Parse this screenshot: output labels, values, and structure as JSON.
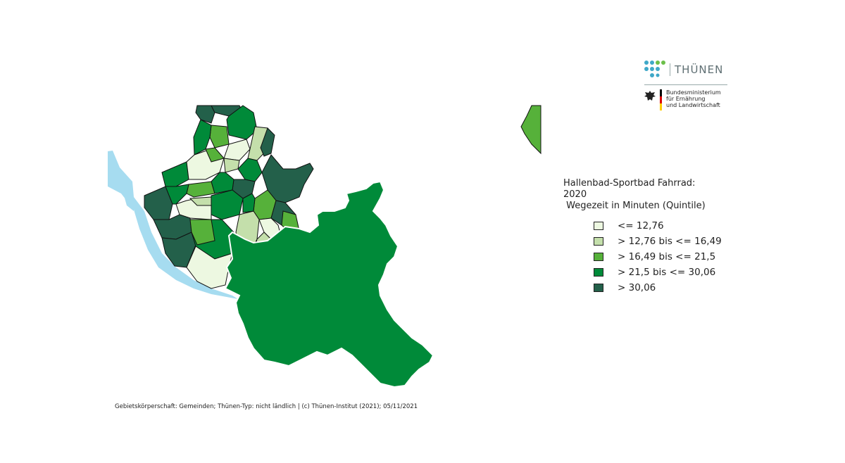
{
  "legend": {
    "title": "Hallenbad-Sportbad Fahrrad:\n2020\n Wegezeit in Minuten (Quintile)",
    "items": [
      {
        "label": "<= 12,76",
        "color": "#edf8e1"
      },
      {
        "label": ">  12,76 bis <= 16,49",
        "color": "#c4dfab"
      },
      {
        "label": ">  16,49 bis <= 21,5",
        "color": "#56b13a"
      },
      {
        "label": ">  21,5 bis <= 30,06",
        "color": "#008a39"
      },
      {
        "label": ">  30,06",
        "color": "#23604a"
      }
    ]
  },
  "logo": {
    "name": "THÜNEN",
    "ministry": [
      "Bundesministerium",
      "für Ernährung",
      "und Landwirtschaft"
    ]
  },
  "footer": "Gebietskörperschaft: Gemeinden; Thünen-Typ: nicht ländlich | (c) Thünen-Institut (2021); 05/11/2021",
  "map": {
    "water_color": "#a6dcf0",
    "regions": [
      {
        "id": "hamburg-main",
        "class": 3
      },
      {
        "id": "north-tip-1",
        "class": 4
      },
      {
        "id": "north-tip-2",
        "class": 4
      },
      {
        "id": "north-1",
        "class": 3
      },
      {
        "id": "north-2",
        "class": 2
      },
      {
        "id": "north-3",
        "class": 0
      },
      {
        "id": "north-4",
        "class": 1
      },
      {
        "id": "north-5",
        "class": 4
      },
      {
        "id": "north-6",
        "class": 3
      },
      {
        "id": "west-1",
        "class": 3
      },
      {
        "id": "center-1",
        "class": 0
      },
      {
        "id": "center-2",
        "class": 2
      },
      {
        "id": "center-3",
        "class": 1
      },
      {
        "id": "center-4",
        "class": 3
      },
      {
        "id": "center-5",
        "class": 4
      },
      {
        "id": "east-big",
        "class": 4
      },
      {
        "id": "center-6",
        "class": 2
      },
      {
        "id": "center-7",
        "class": 3
      },
      {
        "id": "west-2",
        "class": 4
      },
      {
        "id": "west-3",
        "class": 3
      },
      {
        "id": "center-8",
        "class": 0
      },
      {
        "id": "center-9",
        "class": 1
      },
      {
        "id": "center-10",
        "class": 3
      },
      {
        "id": "east-2",
        "class": 2
      },
      {
        "id": "east-3",
        "class": 4
      },
      {
        "id": "south-1",
        "class": 1
      },
      {
        "id": "south-2",
        "class": 0
      },
      {
        "id": "south-3",
        "class": 1
      },
      {
        "id": "southwest-1",
        "class": 4
      },
      {
        "id": "southwest-2",
        "class": 4
      },
      {
        "id": "south-4",
        "class": 3
      },
      {
        "id": "south-5",
        "class": 2
      },
      {
        "id": "south-6",
        "class": 0
      },
      {
        "id": "south-7",
        "class": 0
      },
      {
        "id": "mid-1",
        "class": 3
      },
      {
        "id": "mid-2",
        "class": 2
      },
      {
        "id": "east-edge",
        "class": 2
      }
    ]
  }
}
